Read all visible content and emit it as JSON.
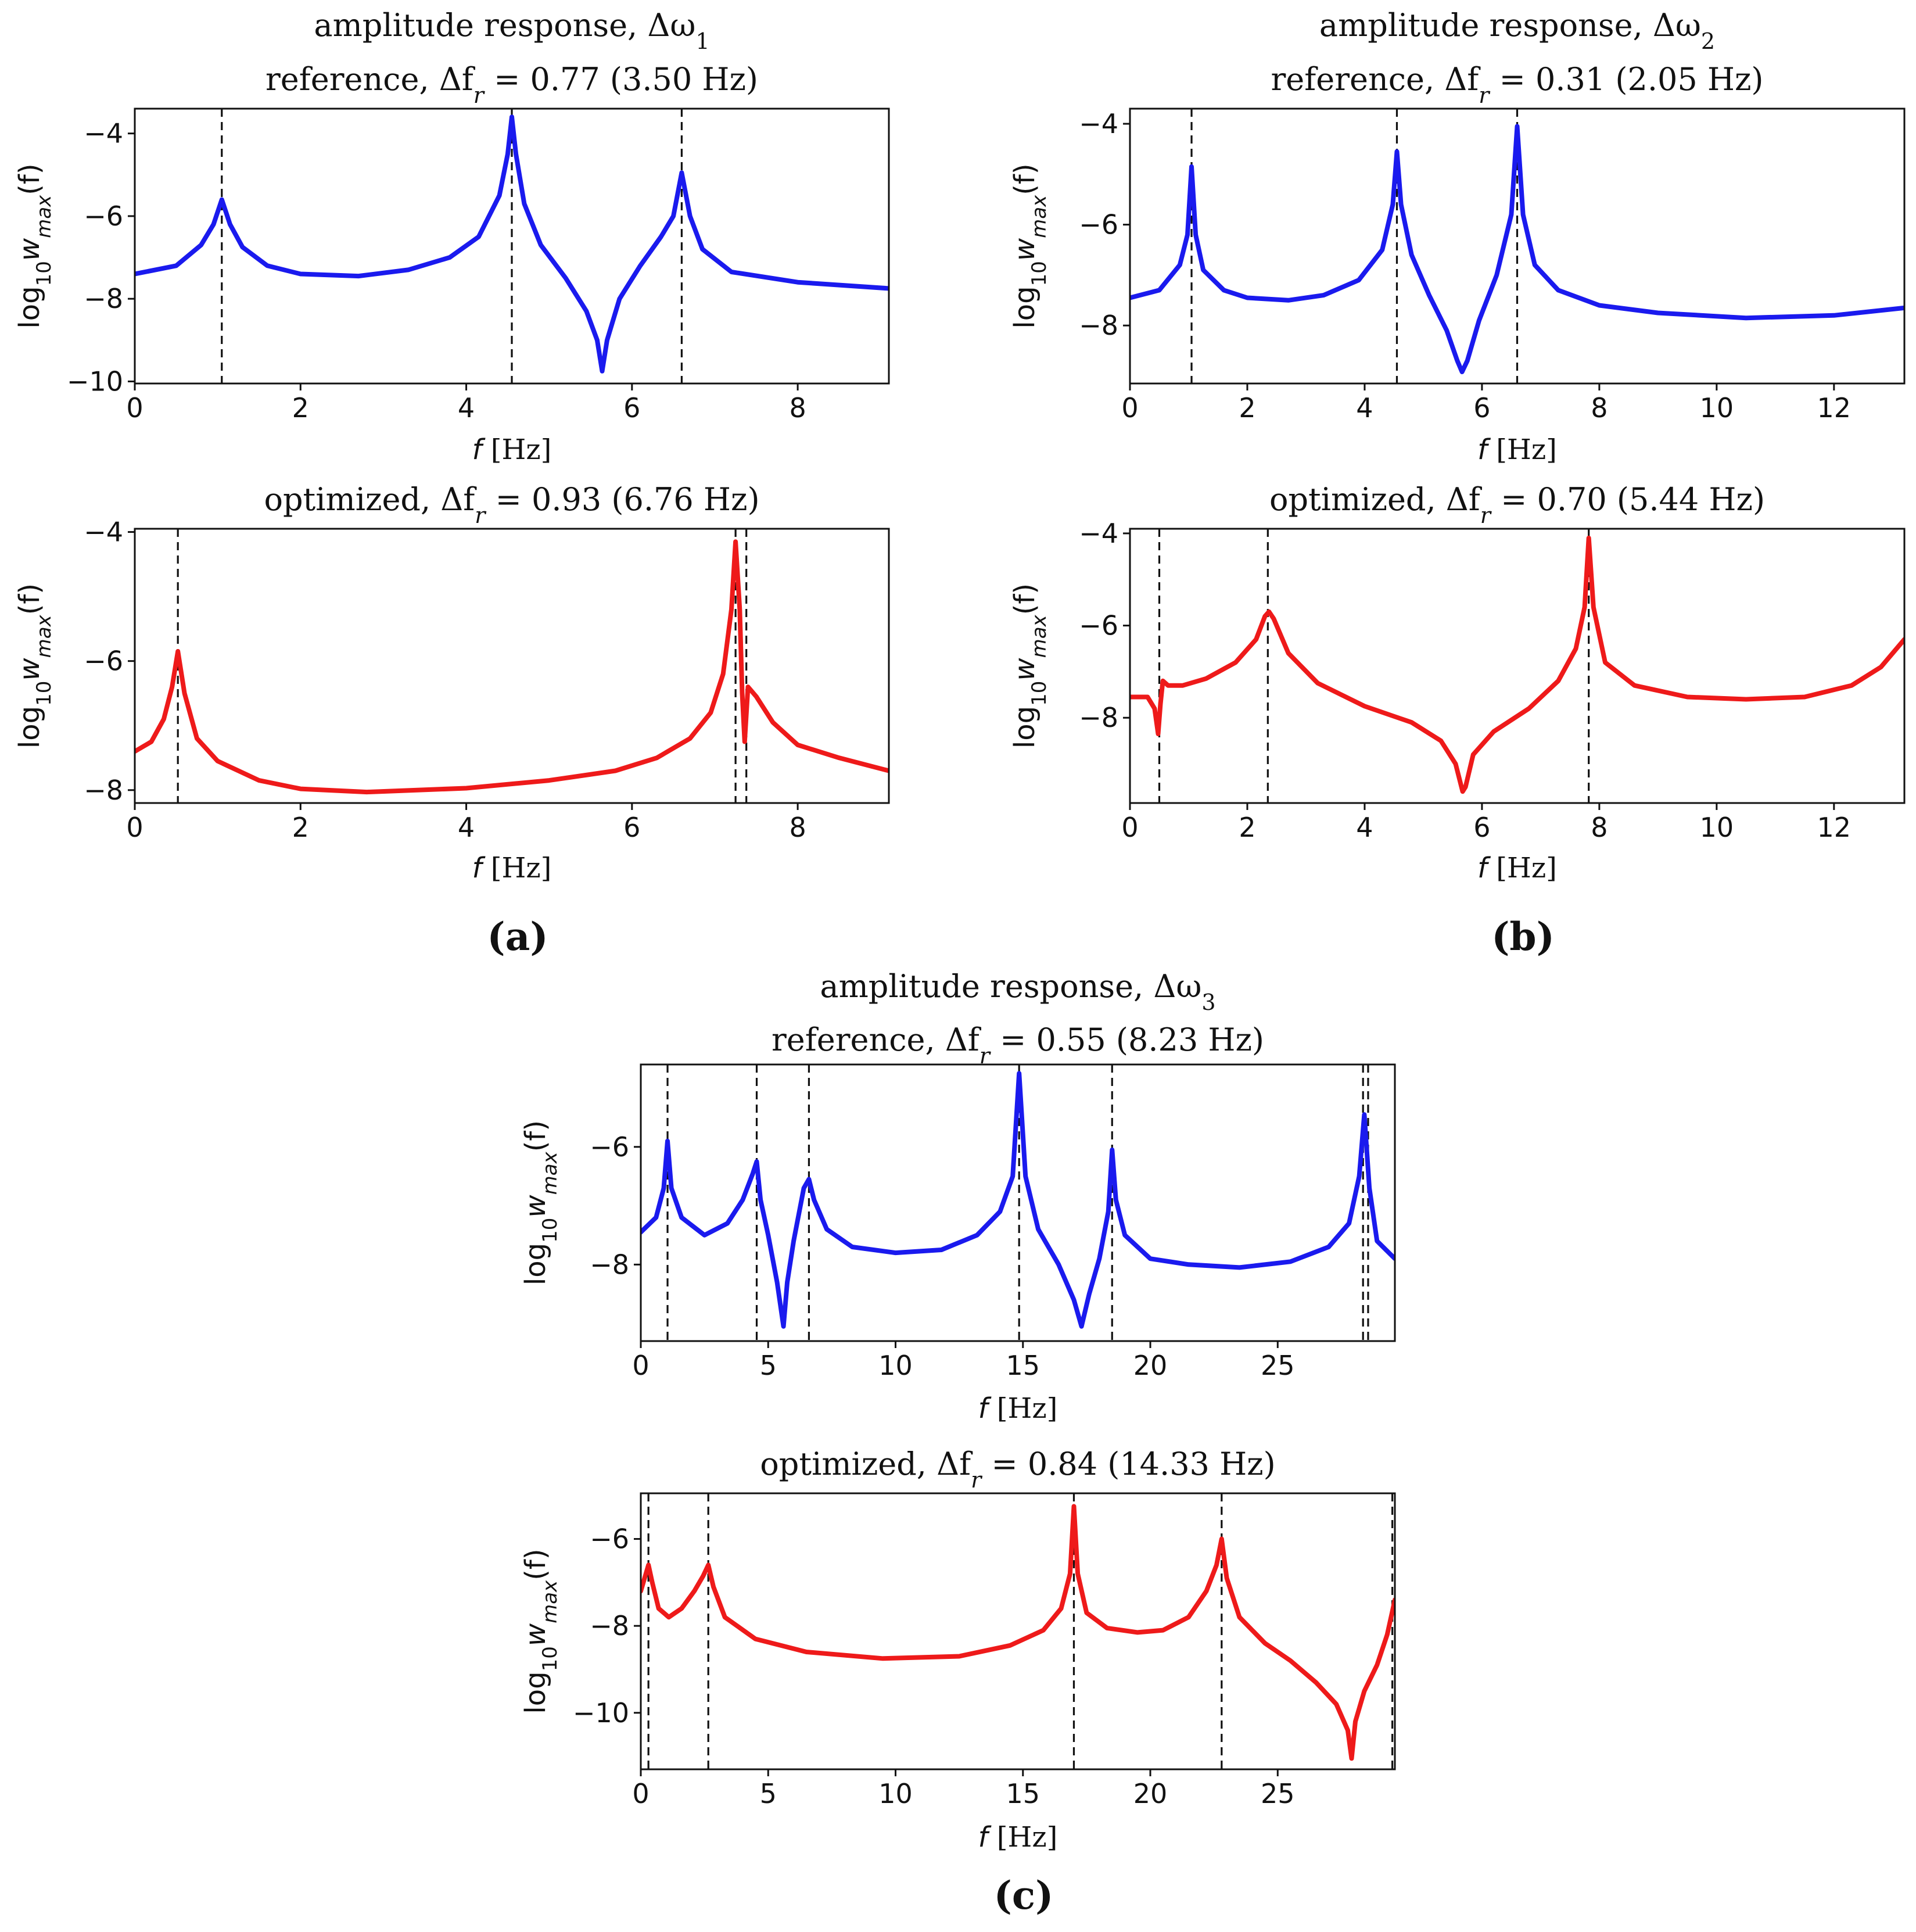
{
  "colors": {
    "reference": "#1a1aee",
    "optimized": "#ee1a1a"
  },
  "chart_data": [
    {
      "id": "a-ref",
      "type": "line",
      "series_name": "reference",
      "color": "#1a1aee",
      "header": "amplitude response, Δω",
      "header_sub": "1",
      "title": "reference, Δf",
      "title_sub": "r",
      "title_rest": " = 0.77 (3.50 Hz)",
      "xlabel_f": "f",
      "xlabel_unit": " [Hz]",
      "ylabel_base": "log",
      "ylabel_sub10": "10",
      "ylabel_w": "w",
      "ylabel_sub": "max",
      "ylabel_tail": "(f)",
      "panel_label": "(a)",
      "xlim": [
        0,
        9.1
      ],
      "ylim": [
        -10.05,
        -3.4
      ],
      "xticks": [
        0,
        2,
        4,
        6,
        8
      ],
      "yticks": [
        -10,
        -8,
        -6,
        -4
      ],
      "resonances": [
        1.05,
        4.55,
        6.6
      ],
      "x": [
        0,
        0.5,
        0.8,
        0.95,
        1.05,
        1.15,
        1.3,
        1.6,
        2.0,
        2.7,
        3.3,
        3.8,
        4.15,
        4.4,
        4.5,
        4.55,
        4.6,
        4.7,
        4.9,
        5.2,
        5.45,
        5.58,
        5.64,
        5.7,
        5.85,
        6.1,
        6.35,
        6.5,
        6.6,
        6.7,
        6.85,
        7.2,
        8.0,
        9.1
      ],
      "y": [
        -7.4,
        -7.2,
        -6.7,
        -6.2,
        -5.6,
        -6.2,
        -6.75,
        -7.2,
        -7.4,
        -7.45,
        -7.3,
        -7.0,
        -6.5,
        -5.5,
        -4.5,
        -3.6,
        -4.5,
        -5.7,
        -6.7,
        -7.5,
        -8.3,
        -9.0,
        -9.75,
        -9.0,
        -8.0,
        -7.2,
        -6.5,
        -6.0,
        -4.95,
        -6.0,
        -6.8,
        -7.35,
        -7.6,
        -7.75
      ]
    },
    {
      "id": "a-opt",
      "type": "line",
      "series_name": "optimized",
      "color": "#ee1a1a",
      "title": "optimized, Δf",
      "title_sub": "r",
      "title_rest": " = 0.93 (6.76 Hz)",
      "xlabel_f": "f",
      "xlabel_unit": " [Hz]",
      "ylabel_base": "log",
      "ylabel_sub10": "10",
      "ylabel_w": "w",
      "ylabel_sub": "max",
      "ylabel_tail": "(f)",
      "xlim": [
        0,
        9.1
      ],
      "ylim": [
        -8.2,
        -3.95
      ],
      "xticks": [
        0,
        2,
        4,
        6,
        8
      ],
      "yticks": [
        -8,
        -6,
        -4
      ],
      "resonances": [
        0.52,
        7.25,
        7.38
      ],
      "x": [
        0,
        0.2,
        0.35,
        0.45,
        0.52,
        0.6,
        0.75,
        1.0,
        1.5,
        2.0,
        2.8,
        4.0,
        5.0,
        5.8,
        6.3,
        6.7,
        6.95,
        7.1,
        7.2,
        7.25,
        7.3,
        7.33,
        7.36,
        7.4,
        7.5,
        7.7,
        8.0,
        8.5,
        9.1
      ],
      "y": [
        -7.4,
        -7.25,
        -6.9,
        -6.4,
        -5.85,
        -6.5,
        -7.2,
        -7.55,
        -7.85,
        -7.98,
        -8.03,
        -7.97,
        -7.85,
        -7.7,
        -7.5,
        -7.2,
        -6.8,
        -6.2,
        -5.2,
        -4.15,
        -5.2,
        -6.5,
        -7.25,
        -6.4,
        -6.55,
        -6.95,
        -7.3,
        -7.5,
        -7.7
      ]
    },
    {
      "id": "b-ref",
      "type": "line",
      "series_name": "reference",
      "color": "#1a1aee",
      "header": "amplitude response, Δω",
      "header_sub": "2",
      "title": "reference, Δf",
      "title_sub": "r",
      "title_rest": " = 0.31 (2.05 Hz)",
      "xlabel_f": "f",
      "xlabel_unit": " [Hz]",
      "ylabel_base": "log",
      "ylabel_sub10": "10",
      "ylabel_w": "w",
      "ylabel_sub": "max",
      "ylabel_tail": "(f)",
      "panel_label": "(b)",
      "xlim": [
        0,
        13.2
      ],
      "ylim": [
        -9.15,
        -3.7
      ],
      "xticks": [
        0,
        2,
        4,
        6,
        8,
        10,
        12
      ],
      "yticks": [
        -8,
        -6,
        -4
      ],
      "resonances": [
        1.05,
        4.55,
        6.6
      ],
      "x": [
        0,
        0.5,
        0.85,
        0.98,
        1.05,
        1.12,
        1.25,
        1.6,
        2.0,
        2.7,
        3.3,
        3.9,
        4.3,
        4.48,
        4.55,
        4.62,
        4.8,
        5.1,
        5.4,
        5.58,
        5.66,
        5.75,
        5.95,
        6.25,
        6.5,
        6.6,
        6.7,
        6.9,
        7.3,
        8.0,
        9.0,
        10.5,
        12.0,
        13.2
      ],
      "y": [
        -7.45,
        -7.3,
        -6.8,
        -6.2,
        -4.85,
        -6.2,
        -6.9,
        -7.3,
        -7.45,
        -7.5,
        -7.4,
        -7.1,
        -6.5,
        -5.6,
        -4.55,
        -5.6,
        -6.6,
        -7.4,
        -8.1,
        -8.7,
        -8.92,
        -8.7,
        -7.9,
        -7.0,
        -5.8,
        -4.05,
        -5.8,
        -6.8,
        -7.3,
        -7.6,
        -7.75,
        -7.85,
        -7.8,
        -7.65
      ]
    },
    {
      "id": "b-opt",
      "type": "line",
      "series_name": "optimized",
      "color": "#ee1a1a",
      "title": "optimized, Δf",
      "title_sub": "r",
      "title_rest": " = 0.70 (5.44 Hz)",
      "xlabel_f": "f",
      "xlabel_unit": " [Hz]",
      "ylabel_base": "log",
      "ylabel_sub10": "10",
      "ylabel_w": "w",
      "ylabel_sub": "max",
      "ylabel_tail": "(f)",
      "xlim": [
        0,
        13.2
      ],
      "ylim": [
        -9.85,
        -3.9
      ],
      "xticks": [
        0,
        2,
        4,
        6,
        8,
        10,
        12
      ],
      "yticks": [
        -8,
        -6,
        -4
      ],
      "resonances": [
        0.5,
        2.35,
        7.82
      ],
      "x": [
        0,
        0.3,
        0.42,
        0.48,
        0.52,
        0.56,
        0.65,
        0.9,
        1.3,
        1.8,
        2.15,
        2.3,
        2.37,
        2.45,
        2.7,
        3.2,
        4.0,
        4.8,
        5.3,
        5.55,
        5.67,
        5.72,
        5.85,
        6.2,
        6.8,
        7.3,
        7.6,
        7.75,
        7.82,
        7.9,
        8.1,
        8.6,
        9.5,
        10.5,
        11.5,
        12.3,
        12.8,
        13.2
      ],
      "y": [
        -7.55,
        -7.55,
        -7.8,
        -8.35,
        -7.7,
        -7.2,
        -7.3,
        -7.3,
        -7.15,
        -6.8,
        -6.3,
        -5.8,
        -5.7,
        -5.85,
        -6.6,
        -7.25,
        -7.75,
        -8.1,
        -8.5,
        -9.0,
        -9.6,
        -9.5,
        -8.8,
        -8.3,
        -7.8,
        -7.2,
        -6.5,
        -5.6,
        -4.1,
        -5.6,
        -6.8,
        -7.3,
        -7.55,
        -7.6,
        -7.55,
        -7.3,
        -6.9,
        -6.3
      ]
    },
    {
      "id": "c-ref",
      "type": "line",
      "series_name": "reference",
      "color": "#1a1aee",
      "header": "amplitude response, Δω",
      "header_sub": "3",
      "title": "reference, Δf",
      "title_sub": "r",
      "title_rest": " = 0.55 (8.23 Hz)",
      "xlabel_f": "f",
      "xlabel_unit": " [Hz]",
      "ylabel_base": "log",
      "ylabel_sub10": "10",
      "ylabel_w": "w",
      "ylabel_sub": "max",
      "ylabel_tail": "(f)",
      "panel_label": "(c)",
      "xlim": [
        0,
        29.6
      ],
      "ylim": [
        -9.3,
        -4.6
      ],
      "xticks": [
        0,
        5,
        10,
        15,
        20,
        25
      ],
      "yticks": [
        -8,
        -6
      ],
      "resonances": [
        1.05,
        4.55,
        6.6,
        14.85,
        18.5,
        28.35,
        28.55
      ],
      "x": [
        0,
        0.6,
        0.9,
        1.05,
        1.2,
        1.6,
        2.5,
        3.4,
        4.0,
        4.4,
        4.55,
        4.7,
        5.0,
        5.35,
        5.6,
        5.75,
        6.0,
        6.4,
        6.6,
        6.8,
        7.3,
        8.3,
        10.0,
        11.8,
        13.2,
        14.1,
        14.6,
        14.85,
        15.1,
        15.6,
        16.4,
        17.0,
        17.3,
        17.6,
        18.0,
        18.35,
        18.5,
        18.65,
        19.0,
        20.0,
        21.5,
        23.5,
        25.5,
        27.0,
        27.8,
        28.2,
        28.4,
        28.6,
        28.9,
        29.6
      ],
      "y": [
        -7.45,
        -7.2,
        -6.7,
        -5.9,
        -6.7,
        -7.2,
        -7.5,
        -7.3,
        -6.9,
        -6.45,
        -6.25,
        -6.9,
        -7.5,
        -8.3,
        -9.05,
        -8.3,
        -7.6,
        -6.7,
        -6.55,
        -6.9,
        -7.4,
        -7.7,
        -7.8,
        -7.75,
        -7.5,
        -7.1,
        -6.5,
        -4.75,
        -6.5,
        -7.4,
        -8.0,
        -8.6,
        -9.05,
        -8.5,
        -7.9,
        -7.1,
        -6.05,
        -6.9,
        -7.5,
        -7.9,
        -8.0,
        -8.05,
        -7.95,
        -7.7,
        -7.3,
        -6.5,
        -5.45,
        -6.7,
        -7.6,
        -7.9
      ]
    },
    {
      "id": "c-opt",
      "type": "line",
      "series_name": "optimized",
      "color": "#ee1a1a",
      "title": "optimized, Δf",
      "title_sub": "r",
      "title_rest": " = 0.84 (14.33 Hz)",
      "xlabel_f": "f",
      "xlabel_unit": " [Hz]",
      "ylabel_base": "log",
      "ylabel_sub10": "10",
      "ylabel_w": "w",
      "ylabel_sub": "max",
      "ylabel_tail": "(f)",
      "xlim": [
        0,
        29.6
      ],
      "ylim": [
        -11.3,
        -4.95
      ],
      "xticks": [
        0,
        5,
        10,
        15,
        20,
        25
      ],
      "yticks": [
        -10,
        -8,
        -6
      ],
      "resonances": [
        0.3,
        2.65,
        17.0,
        22.8,
        29.5
      ],
      "x": [
        0,
        0.15,
        0.3,
        0.45,
        0.7,
        1.1,
        1.6,
        2.1,
        2.45,
        2.65,
        2.85,
        3.3,
        4.5,
        6.5,
        9.5,
        12.5,
        14.5,
        15.8,
        16.5,
        16.85,
        17.0,
        17.15,
        17.5,
        18.3,
        19.5,
        20.5,
        21.5,
        22.2,
        22.6,
        22.8,
        23.0,
        23.5,
        24.5,
        25.5,
        26.5,
        27.3,
        27.75,
        27.9,
        28.05,
        28.4,
        28.9,
        29.3,
        29.6
      ],
      "y": [
        -7.2,
        -6.9,
        -6.6,
        -7.0,
        -7.6,
        -7.8,
        -7.6,
        -7.2,
        -6.85,
        -6.6,
        -7.1,
        -7.8,
        -8.3,
        -8.6,
        -8.75,
        -8.7,
        -8.45,
        -8.1,
        -7.6,
        -6.8,
        -5.25,
        -6.8,
        -7.7,
        -8.05,
        -8.15,
        -8.1,
        -7.8,
        -7.2,
        -6.6,
        -6.0,
        -6.9,
        -7.8,
        -8.4,
        -8.8,
        -9.3,
        -9.8,
        -10.4,
        -11.05,
        -10.2,
        -9.5,
        -8.9,
        -8.2,
        -7.4
      ]
    }
  ]
}
